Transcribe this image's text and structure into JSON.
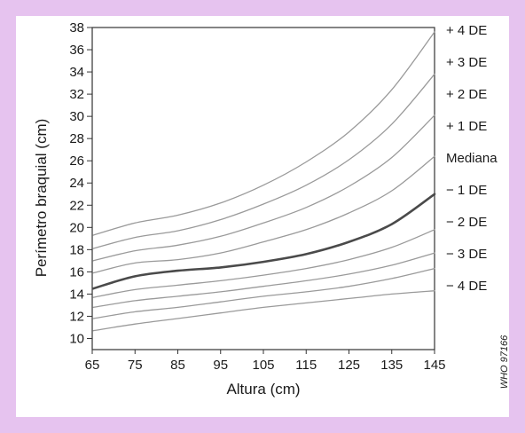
{
  "chart_data": {
    "type": "line",
    "title": "",
    "xlabel": "Altura (cm)",
    "ylabel": "Perímetro braquial (cm)",
    "xlim": [
      65,
      145
    ],
    "ylim": [
      9,
      38
    ],
    "x_ticks": [
      65,
      75,
      85,
      95,
      105,
      115,
      125,
      135,
      145
    ],
    "y_ticks": [
      10,
      12,
      14,
      16,
      18,
      20,
      22,
      24,
      26,
      28,
      30,
      32,
      34,
      36,
      38
    ],
    "grid": false,
    "legend": "labels at right end of each curve",
    "x": [
      65,
      75,
      85,
      95,
      105,
      115,
      125,
      135,
      145
    ],
    "series": [
      {
        "name": "+ 4 DE",
        "values": [
          19.3,
          20.4,
          21.1,
          22.2,
          23.8,
          25.9,
          28.6,
          32.4,
          37.6
        ],
        "emphasis": false
      },
      {
        "name": "+ 3 DE",
        "values": [
          18.1,
          19.1,
          19.7,
          20.7,
          22.1,
          23.8,
          26.1,
          29.3,
          33.8
        ],
        "emphasis": false
      },
      {
        "name": "+ 2 DE",
        "values": [
          17.0,
          17.9,
          18.4,
          19.2,
          20.4,
          21.8,
          23.7,
          26.3,
          30.1
        ],
        "emphasis": false
      },
      {
        "name": "+ 1 DE",
        "values": [
          15.9,
          16.8,
          17.1,
          17.7,
          18.7,
          19.8,
          21.3,
          23.3,
          26.4
        ],
        "emphasis": false
      },
      {
        "name": "Mediana",
        "values": [
          14.5,
          15.6,
          16.1,
          16.4,
          16.9,
          17.6,
          18.7,
          20.3,
          23.0
        ],
        "emphasis": true
      },
      {
        "name": "− 1 DE",
        "values": [
          13.7,
          14.4,
          14.8,
          15.2,
          15.7,
          16.3,
          17.1,
          18.2,
          19.8
        ],
        "emphasis": false
      },
      {
        "name": "− 2 DE",
        "values": [
          12.8,
          13.4,
          13.8,
          14.2,
          14.7,
          15.2,
          15.8,
          16.6,
          17.7
        ],
        "emphasis": false
      },
      {
        "name": "− 3 DE",
        "values": [
          11.8,
          12.4,
          12.8,
          13.3,
          13.8,
          14.2,
          14.7,
          15.4,
          16.3
        ],
        "emphasis": false
      },
      {
        "name": "− 4 DE",
        "values": [
          10.7,
          11.3,
          11.8,
          12.3,
          12.8,
          13.2,
          13.6,
          14.0,
          14.3
        ],
        "emphasis": false
      }
    ]
  },
  "watermark": "WHO 97166",
  "colors": {
    "background": "#e6c3ef",
    "panel": "#ffffff",
    "curve": "#9a9a9a",
    "median_curve": "#4a4a4a",
    "axis": "#333333",
    "text": "#1a1a1a"
  }
}
